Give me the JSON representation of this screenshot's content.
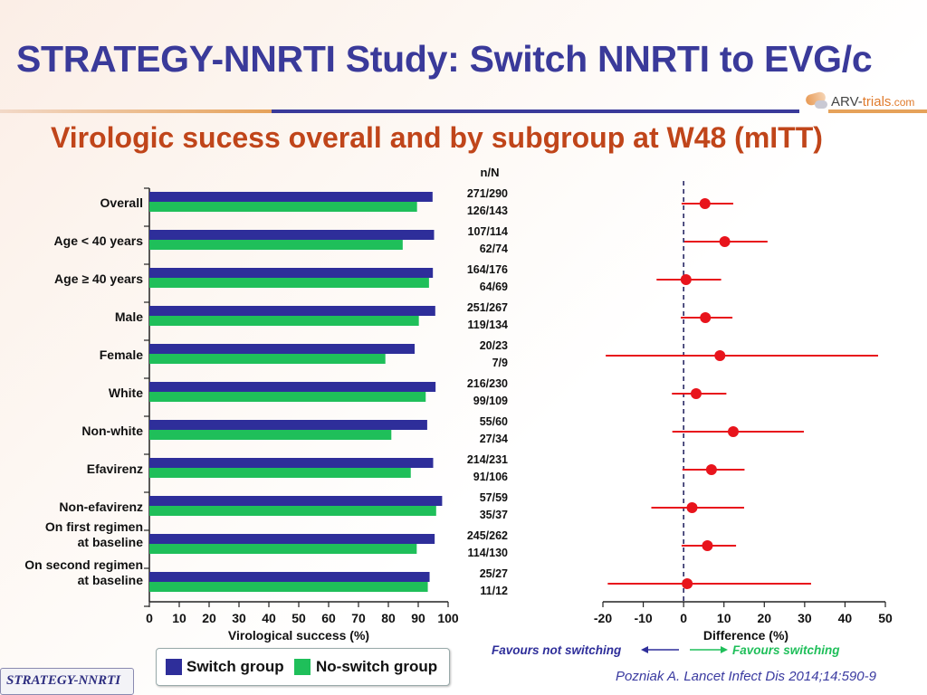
{
  "header": {
    "title": "STRATEGY-NNRTI Study: Switch NNRTI to EVG/c",
    "logo_text_1": "ARV-",
    "logo_text_2": "trials",
    "logo_text_3": ".com"
  },
  "subtitle": "Virologic sucess overall and by subgroup at W48 (mITT)",
  "colors": {
    "switch": "#2e2e9a",
    "no_switch": "#1fbf5a",
    "point": "#e8141c",
    "left_arrow": "#2e2e9a",
    "right_arrow": "#1fbf5a"
  },
  "chart_data": [
    {
      "type": "bar",
      "orientation": "horizontal",
      "xlabel": "Virological success (%)",
      "xlim": [
        0,
        100
      ],
      "xticks": [
        "0",
        "10",
        "20",
        "30",
        "40",
        "50",
        "60",
        "70",
        "80",
        "90",
        "100"
      ],
      "nN_header": "n/N",
      "categories": [
        {
          "label": [
            "Overall"
          ],
          "switch": 94.8,
          "no_switch": 89.6,
          "n_switch": "271/290",
          "n_no_switch": "126/143"
        },
        {
          "label": [
            "Age < 40 years"
          ],
          "switch": 95.3,
          "no_switch": 84.8,
          "n_switch": "107/114",
          "n_no_switch": "62/74"
        },
        {
          "label": [
            "Age ≥ 40 years"
          ],
          "switch": 94.9,
          "no_switch": 93.6,
          "n_switch": "164/176",
          "n_no_switch": "64/69"
        },
        {
          "label": [
            "Male"
          ],
          "switch": 95.7,
          "no_switch": 90.2,
          "n_switch": "251/267",
          "n_no_switch": "119/134"
        },
        {
          "label": [
            "Female"
          ],
          "switch": 88.8,
          "no_switch": 79.0,
          "n_switch": "20/23",
          "n_no_switch": "7/9"
        },
        {
          "label": [
            "White"
          ],
          "switch": 95.8,
          "no_switch": 92.5,
          "n_switch": "216/230",
          "n_no_switch": "99/109"
        },
        {
          "label": [
            "Non-white"
          ],
          "switch": 93.0,
          "no_switch": 81.0,
          "n_switch": "55/60",
          "n_no_switch": "27/34"
        },
        {
          "label": [
            "Efavirenz"
          ],
          "switch": 95.0,
          "no_switch": 87.5,
          "n_switch": "214/231",
          "n_no_switch": "91/106"
        },
        {
          "label": [
            "Non-efavirenz"
          ],
          "switch": 98.0,
          "no_switch": 96.0,
          "n_switch": "57/59",
          "n_no_switch": "35/37"
        },
        {
          "label": [
            "On first regimen",
            "at baseline"
          ],
          "switch": 95.5,
          "no_switch": 89.5,
          "n_switch": "245/262",
          "n_no_switch": "114/130"
        },
        {
          "label": [
            "On second regimen",
            "at baseline"
          ],
          "switch": 93.8,
          "no_switch": 93.2,
          "n_switch": "25/27",
          "n_no_switch": "11/12"
        }
      ],
      "series": [
        {
          "name": "Switch group"
        },
        {
          "name": "No-switch group"
        }
      ]
    },
    {
      "type": "scatter",
      "subtype": "forest",
      "xlabel": "Difference (%)",
      "xlim": [
        -20,
        50
      ],
      "xticks": [
        "-20",
        "-10",
        "0",
        "10",
        "20",
        "30",
        "40",
        "50"
      ],
      "points": [
        {
          "estimate": 5.3,
          "lower": -0.5,
          "upper": 12.3
        },
        {
          "estimate": 10.2,
          "lower": 0.2,
          "upper": 20.8
        },
        {
          "estimate": 0.6,
          "lower": -6.7,
          "upper": 9.3
        },
        {
          "estimate": 5.4,
          "lower": -0.7,
          "upper": 12.1
        },
        {
          "estimate": 9.0,
          "lower": -19.3,
          "upper": 48.2
        },
        {
          "estimate": 3.1,
          "lower": -2.9,
          "upper": 10.6
        },
        {
          "estimate": 12.3,
          "lower": -2.8,
          "upper": 29.8
        },
        {
          "estimate": 6.9,
          "lower": -0.3,
          "upper": 15.1
        },
        {
          "estimate": 2.1,
          "lower": -8.0,
          "upper": 15.0
        },
        {
          "estimate": 5.9,
          "lower": -0.5,
          "upper": 13.0
        },
        {
          "estimate": 0.9,
          "lower": -18.8,
          "upper": 31.6
        }
      ],
      "favours_left": "Favours not switching",
      "favours_right": "Favours switching"
    }
  ],
  "legend": {
    "switch": "Switch group",
    "no_switch": "No-switch group"
  },
  "citation": "Pozniak A. Lancet Infect Dis 2014;14:590-9",
  "footer_badge": "STRATEGY-NNRTI"
}
